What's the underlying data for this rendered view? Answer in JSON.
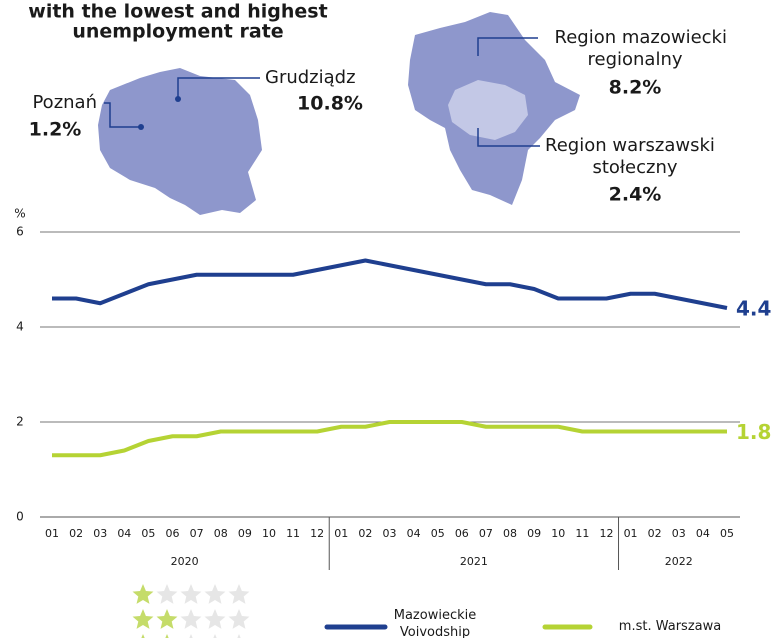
{
  "chart_data": {
    "type": "line",
    "title_lines": [
      "with the lowest and highest",
      "unemployment rate"
    ],
    "annotations": [
      {
        "lines": [
          "Poznań"
        ],
        "value": "1.2%"
      },
      {
        "lines": [
          "Grudziądz"
        ],
        "value": "10.8%"
      },
      {
        "lines": [
          "Region mazowiecki",
          "regionalny"
        ],
        "value": "8.2%"
      },
      {
        "lines": [
          "Region warszawski",
          "stołeczny"
        ],
        "value": "2.4%"
      }
    ],
    "y_label": "%",
    "categories": [
      "01",
      "02",
      "03",
      "04",
      "05",
      "06",
      "07",
      "08",
      "09",
      "10",
      "11",
      "12",
      "01",
      "02",
      "03",
      "04",
      "05",
      "06",
      "07",
      "08",
      "09",
      "10",
      "11",
      "12",
      "01",
      "02",
      "03",
      "04",
      "05"
    ],
    "groups": [
      {
        "label": "2020",
        "count": 12
      },
      {
        "label": "2021",
        "count": 12
      },
      {
        "label": "2022",
        "count": 5
      }
    ],
    "series": [
      {
        "name": "Mazowieckie Voivodship",
        "color": "#1f3f8f",
        "values": [
          4.6,
          4.6,
          4.5,
          4.7,
          4.9,
          5.0,
          5.1,
          5.1,
          5.1,
          5.1,
          5.1,
          5.2,
          5.3,
          5.4,
          5.3,
          5.2,
          5.1,
          5.0,
          4.9,
          4.9,
          4.8,
          4.6,
          4.6,
          4.6,
          4.7,
          4.7,
          4.6,
          4.5,
          4.4
        ]
      },
      {
        "name": "m.st. Warszawa",
        "color": "#b5d334",
        "values": [
          1.3,
          1.3,
          1.3,
          1.4,
          1.6,
          1.7,
          1.7,
          1.8,
          1.8,
          1.8,
          1.8,
          1.8,
          1.9,
          1.9,
          2.0,
          2.0,
          2.0,
          2.0,
          1.9,
          1.9,
          1.9,
          1.9,
          1.8,
          1.8,
          1.8,
          1.8,
          1.8,
          1.8,
          1.8
        ]
      }
    ],
    "ylim": [
      0,
      6
    ],
    "yticks": [
      0,
      2,
      4,
      6
    ],
    "grid": true
  }
}
